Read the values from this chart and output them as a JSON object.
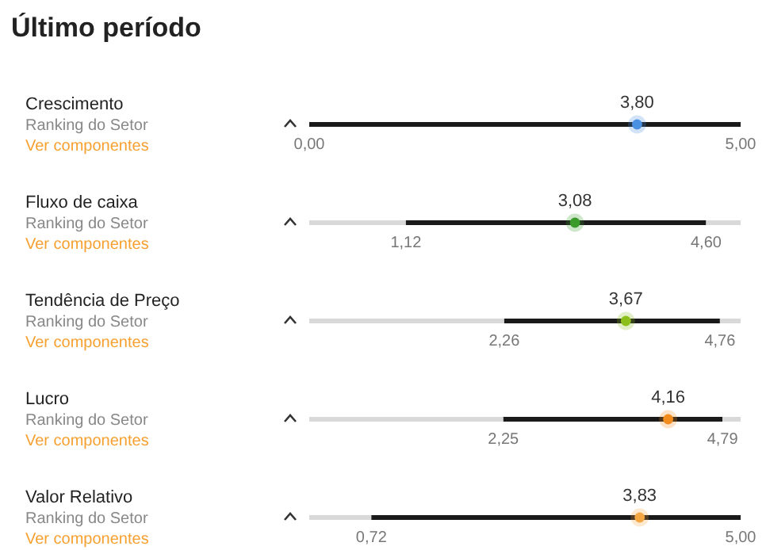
{
  "chart_data": {
    "type": "bar",
    "orientation": "horizontal",
    "stacked": true,
    "title": "Último período",
    "categories": [
      "Crescimento",
      "Fluxo de caixa",
      "Tendência de Preço",
      "Lucro",
      "Valor Relativo"
    ],
    "series": [
      {
        "color": "#d9d9d9",
        "values": [
          0,
          1.12,
          2.26,
          2.25,
          0.72
        ]
      },
      {
        "type": "bar",
        "color": "#1a1a1a",
        "values": [
          5.0,
          3.48,
          2.5,
          2.54,
          4.28
        ]
      },
      {
        "type": "bar",
        "color": "#d9d9d9",
        "values": [
          0,
          0.4,
          0.24,
          0.21,
          0
        ]
      },
      {
        "type": "scatter",
        "colors": [
          "#4a90e2",
          "#3a9a2a",
          "#8cbf1a",
          "#f28c1c",
          "#f5a742"
        ],
        "values": [
          3.8,
          3.08,
          3.67,
          4.16,
          3.83
        ],
        "value_labels": [
          "3,80",
          "3,08",
          "3,67",
          "4,16",
          "3,83"
        ]
      }
    ],
    "xlim": [
      0,
      5
    ],
    "tick_labels": "y",
    "annotations": [
      "Ranking do Setor",
      "Ver componentes",
      "0,00",
      "5,00",
      "Ranking do Setor",
      "Ver componentes",
      "1,12",
      "4,60",
      "Ranking do Setor",
      "Ver componentes",
      "2,26",
      "4,76",
      "Ranking do Setor",
      "Ver componentes",
      "2,25",
      "4,79",
      "Ranking do Setor",
      "Ver componentes",
      "0,72",
      "5,00"
    ]
  }
}
